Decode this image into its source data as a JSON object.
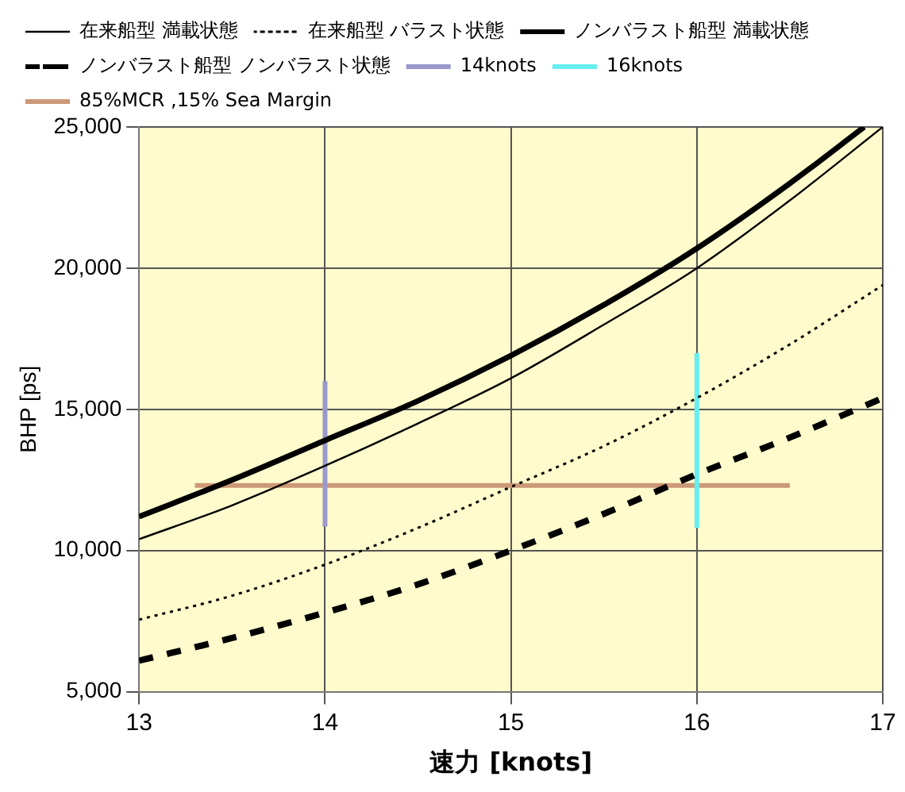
{
  "chart_data": {
    "type": "line",
    "xlabel": "速力 [knots]",
    "ylabel": "BHP [ps]",
    "xlim": [
      13,
      17
    ],
    "xticks": [
      13,
      14,
      15,
      16,
      17
    ],
    "ylim": [
      5000,
      25000
    ],
    "yticks": [
      {
        "value": 5000,
        "label": "5,000"
      },
      {
        "value": 10000,
        "label": "10,000"
      },
      {
        "value": 15000,
        "label": "15,000"
      },
      {
        "value": 20000,
        "label": "20,000"
      },
      {
        "value": 25000,
        "label": "25,000"
      }
    ],
    "grid": true,
    "legend": "top",
    "marker": "none",
    "series": [
      {
        "name": "在来船型 満載状態",
        "color": "#000000",
        "line_style": "solid",
        "x": [
          13,
          13.5,
          14,
          14.5,
          15,
          15.5,
          16,
          16.5,
          17
        ],
        "values": [
          10400,
          11600,
          13000,
          14500,
          16100,
          18000,
          20000,
          22400,
          25000
        ]
      },
      {
        "name": "在来船型 バラスト状態",
        "color": "#000000",
        "line_style": "dotted",
        "x": [
          13,
          13.5,
          14,
          14.5,
          15,
          15.5,
          16,
          16.5,
          17
        ],
        "values": [
          7550,
          8400,
          9500,
          10800,
          12250,
          13700,
          15400,
          17300,
          19400
        ]
      },
      {
        "name": "ノンバラスト船型 満載状態",
        "color": "#000000",
        "line_style": "solid",
        "x": [
          13,
          13.5,
          14,
          14.5,
          15,
          15.5,
          16,
          16.5,
          16.9
        ],
        "values": [
          11200,
          12500,
          13900,
          15300,
          16900,
          18700,
          20700,
          23000,
          25000
        ]
      },
      {
        "name": "ノンバラスト船型 ノンバラスト状態",
        "color": "#000000",
        "line_style": "dashed",
        "x": [
          13,
          13.5,
          14,
          14.5,
          15,
          15.5,
          16,
          16.5,
          17
        ],
        "values": [
          6100,
          6900,
          7800,
          8800,
          10000,
          11300,
          12700,
          14000,
          15400
        ]
      },
      {
        "name": "14knots",
        "color": "#9999cc",
        "line_style": "solid",
        "x": [
          14,
          14
        ],
        "values": [
          10850,
          16000
        ]
      },
      {
        "name": "16knots",
        "color": "#66eef0",
        "line_style": "solid",
        "x": [
          16,
          16
        ],
        "values": [
          10800,
          17000
        ]
      },
      {
        "name": "85%MCR ,15% Sea Margin",
        "color": "#cc9977",
        "line_style": "solid",
        "x": [
          13.3,
          16.5
        ],
        "values": [
          12300,
          12300
        ]
      }
    ]
  }
}
